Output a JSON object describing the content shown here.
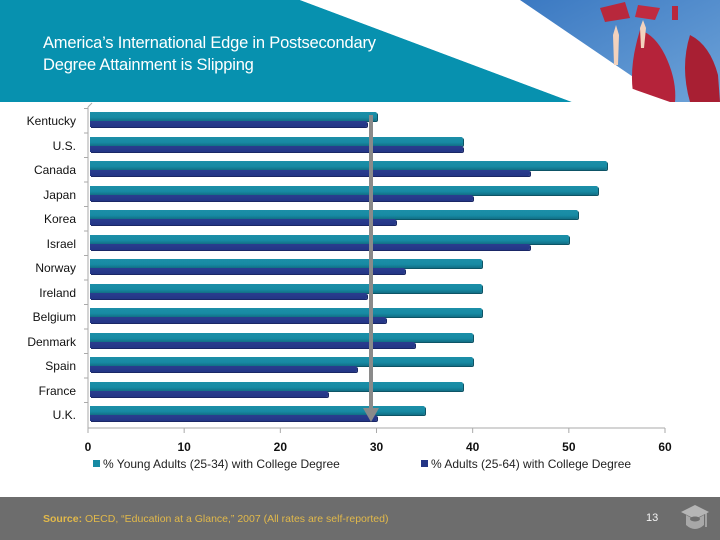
{
  "header": {
    "title_line1": "America’s International Edge in Postsecondary",
    "title_line2": "Degree Attainment is Slipping",
    "band_color": "#0791af",
    "image_description": "graduates-tossing-caps-photo"
  },
  "chart_data": {
    "type": "bar",
    "orientation": "horizontal",
    "title": "America’s International Edge in Postsecondary Degree Attainment is Slipping",
    "xlabel": "",
    "ylabel": "",
    "xlim": [
      0,
      60
    ],
    "x_ticks": [
      "0",
      "10",
      "20",
      "30",
      "40",
      "50",
      "60"
    ],
    "grid": false,
    "legend_position": "bottom",
    "categories": [
      "Kentucky",
      "U.S.",
      "Canada",
      "Japan",
      "Korea",
      "Israel",
      "Norway",
      "Ireland",
      "Belgium",
      "Denmark",
      "Spain",
      "France",
      "U.K."
    ],
    "series": [
      {
        "name": "% Young Adults (25-34) with College Degree",
        "color": "#178aa3",
        "values": [
          30,
          39,
          54,
          53,
          51,
          50,
          41,
          41,
          41,
          40,
          40,
          39,
          35
        ]
      },
      {
        "name": "% Adults (25-64) with College Degree",
        "color": "#233585",
        "values": [
          29,
          39,
          46,
          40,
          32,
          46,
          33,
          29,
          31,
          34,
          28,
          25,
          30
        ]
      }
    ],
    "annotation": {
      "type": "vertical-arrow",
      "x_value": 29.5,
      "color": "#8a8a8a",
      "description": "Kentucky level reference line"
    }
  },
  "legend": {
    "young": "% Young Adults (25-34) with College Degree",
    "adults": "% Adults (25-64) with College Degree"
  },
  "footer": {
    "source_label": "Source:",
    "source_text": " OECD, “Education at a Glance,” 2007 (All rates are self-reported)",
    "page_number": "13",
    "logo_icon": "graduation-cap-icon"
  }
}
